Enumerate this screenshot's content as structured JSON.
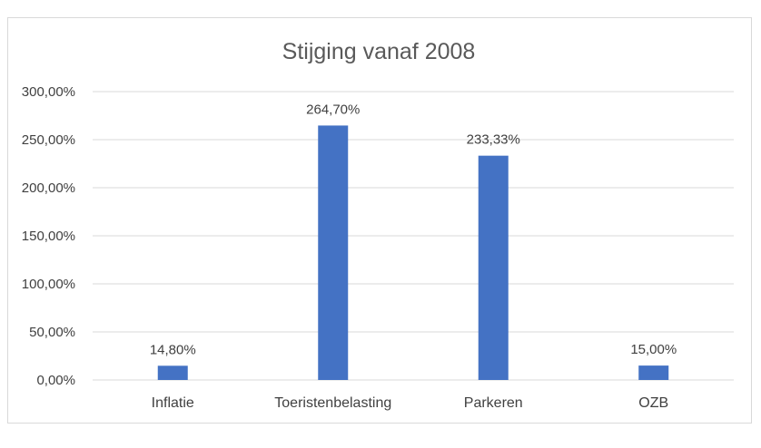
{
  "chart_data": {
    "type": "bar",
    "title": "Stijging vanaf 2008",
    "categories": [
      "Inflatie",
      "Toeristenbelasting",
      "Parkeren",
      "OZB"
    ],
    "values": [
      14.8,
      264.7,
      233.33,
      15.0
    ],
    "data_labels": [
      "14,80%",
      "264,70%",
      "233,33%",
      "15,00%"
    ],
    "y_ticks": [
      "0,00%",
      "50,00%",
      "100,00%",
      "150,00%",
      "200,00%",
      "250,00%",
      "300,00%"
    ],
    "ylim": [
      0,
      300
    ],
    "xlabel": "",
    "ylabel": "",
    "grid": true,
    "legend": "none",
    "bar_color": "#4472c4",
    "grid_color": "#d9d9d9"
  }
}
